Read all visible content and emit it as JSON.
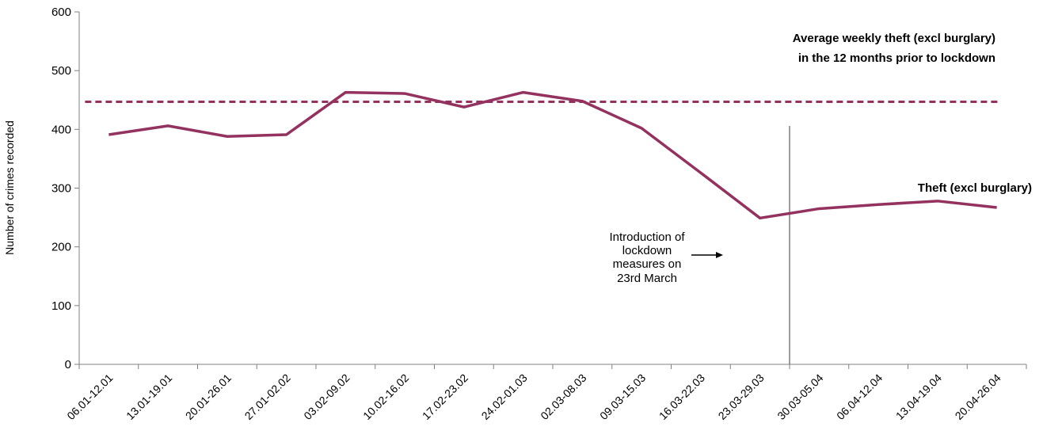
{
  "chart_data": {
    "type": "line",
    "title": "",
    "xlabel": "",
    "ylabel": "Number of crimes recorded",
    "ylim": [
      0,
      600
    ],
    "yticks": [
      0,
      100,
      200,
      300,
      400,
      500,
      600
    ],
    "grid": false,
    "categories": [
      "06.01-12.01",
      "13.01-19.01",
      "20.01-26.01",
      "27.01-02.02",
      "03.02-09.02",
      "10.02-16.02",
      "17.02-23.02",
      "24.02-01.03",
      "02.03-08.03",
      "09.03-15.03",
      "16.03-22.03",
      "23.03-29.03",
      "30.03-05.04",
      "06.04-12.04",
      "13.04-19.04",
      "20.04-26.04"
    ],
    "series": [
      {
        "name": "Theft (excl burglary)",
        "color": "#93315f",
        "style": "solid",
        "values": [
          391,
          406,
          388,
          391,
          463,
          461,
          438,
          463,
          448,
          402,
          326,
          249,
          265,
          272,
          278,
          267
        ]
      }
    ],
    "reference_lines": [
      {
        "label_lines": [
          "Average weekly theft (excl burglary)",
          "in the 12 months prior to lockdown"
        ],
        "value": 447,
        "color": "#93315f",
        "style": "dashed"
      }
    ],
    "annotations": [
      {
        "type": "vertical-line",
        "between_categories": [
          "23.03-29.03",
          "30.03-05.04"
        ],
        "color": "#7f7f7f",
        "label_lines": [
          "Introduction of",
          "lockdown",
          "measures on",
          "23rd March"
        ]
      }
    ]
  }
}
